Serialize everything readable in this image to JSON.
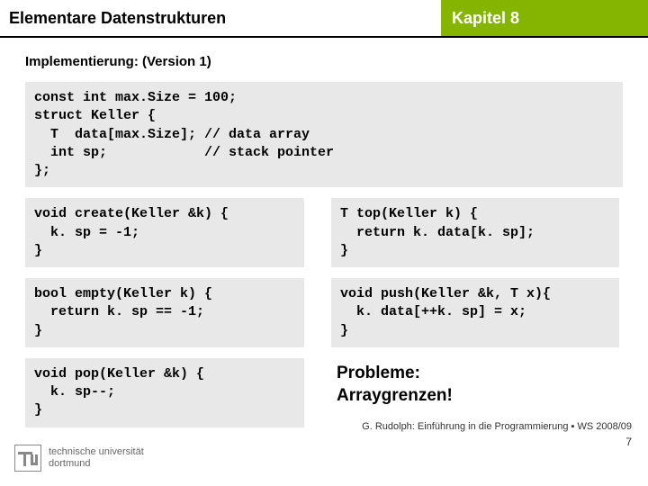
{
  "header": {
    "left": "Elementare Datenstrukturen",
    "right": "Kapitel 8"
  },
  "subtitle": "Implementierung: (Version 1)",
  "code": {
    "struct_def": "const int max.Size = 100;\nstruct Keller {\n  T  data[max.Size]; // data array\n  int sp;            // stack pointer\n};",
    "create": "void create(Keller &k) {\n  k. sp = -1;\n}",
    "top": "T top(Keller k) {\n  return k. data[k. sp];\n}",
    "empty": "bool empty(Keller k) {\n  return k. sp == -1;\n}",
    "push": "void push(Keller &k, T x){\n  k. data[++k. sp] = x;\n}",
    "pop": "void pop(Keller &k) {\n  k. sp--;\n}"
  },
  "problems": {
    "line1": "Probleme:",
    "line2": "Arraygrenzen!"
  },
  "footer": {
    "credit": "G. Rudolph: Einführung in die Programmierung ▪ WS 2008/09",
    "page": "7",
    "uni1": "technische universität",
    "uni2": "dortmund"
  },
  "colors": {
    "accent": "#86b500",
    "code_bg": "#e8e8e8"
  }
}
